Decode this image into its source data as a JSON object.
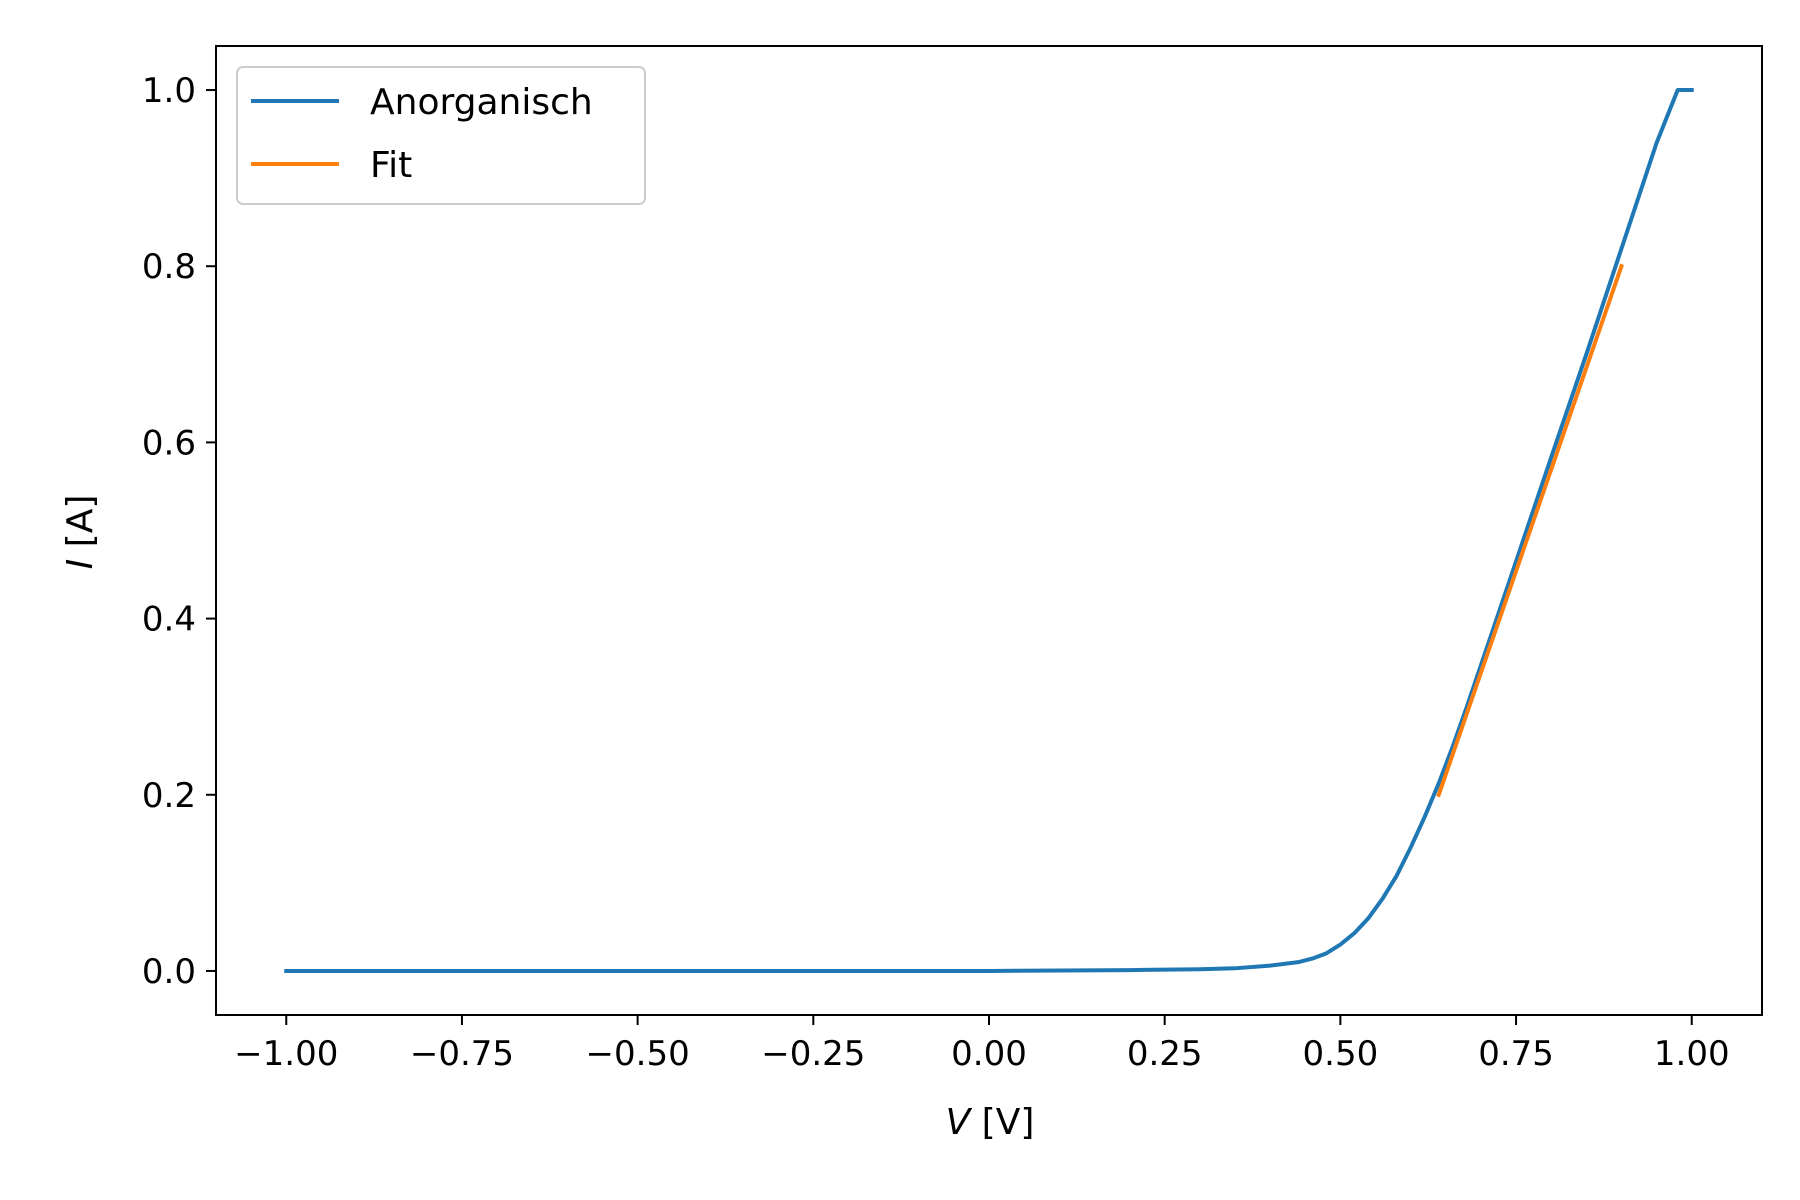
{
  "chart_data": {
    "type": "line",
    "xlabel": {
      "var": "V",
      "unit": " [V]"
    },
    "ylabel": {
      "var": "I",
      "unit": " [A]"
    },
    "xlim": [
      -1.1,
      1.1
    ],
    "ylim": [
      -0.05,
      1.05
    ],
    "xticks": [
      -1.0,
      -0.75,
      -0.5,
      -0.25,
      0.0,
      0.25,
      0.5,
      0.75,
      1.0
    ],
    "xtick_labels": [
      "−1.00",
      "−0.75",
      "−0.50",
      "−0.25",
      "0.00",
      "0.25",
      "0.50",
      "0.75",
      "1.00"
    ],
    "yticks": [
      0.0,
      0.2,
      0.4,
      0.6,
      0.8,
      1.0
    ],
    "ytick_labels": [
      "0.0",
      "0.2",
      "0.4",
      "0.6",
      "0.8",
      "1.0"
    ],
    "grid": false,
    "legend_position": "top-left",
    "series": [
      {
        "name": "Anorganisch",
        "color": "#1f77b4",
        "x": [
          -1.0,
          -0.75,
          -0.5,
          -0.25,
          0.0,
          0.2,
          0.3,
          0.35,
          0.4,
          0.44,
          0.46,
          0.48,
          0.5,
          0.52,
          0.54,
          0.56,
          0.58,
          0.6,
          0.62,
          0.64,
          0.66,
          0.68,
          0.7,
          0.72,
          0.75,
          0.8,
          0.85,
          0.9,
          0.95,
          0.96,
          0.98,
          1.0
        ],
        "y": [
          0.0,
          0.0,
          0.0,
          0.0,
          0.0,
          0.001,
          0.002,
          0.003,
          0.006,
          0.01,
          0.014,
          0.02,
          0.03,
          0.043,
          0.06,
          0.082,
          0.108,
          0.14,
          0.175,
          0.213,
          0.255,
          0.3,
          0.347,
          0.394,
          0.465,
          0.583,
          0.7,
          0.82,
          0.94,
          0.96,
          1.0,
          1.0
        ]
      },
      {
        "name": "Fit",
        "color": "#ff7f0e",
        "x": [
          0.64,
          0.9
        ],
        "y": [
          0.2,
          0.8
        ]
      }
    ]
  }
}
